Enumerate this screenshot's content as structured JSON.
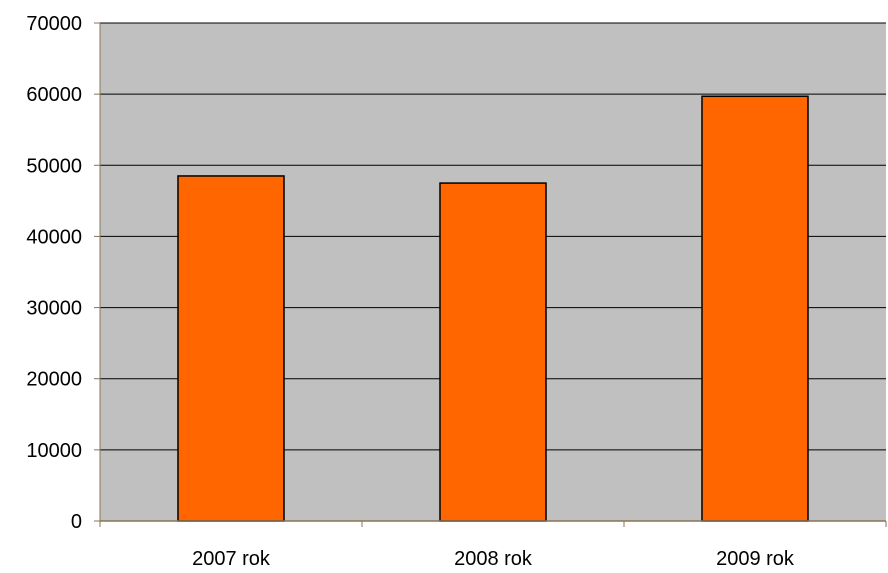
{
  "chart_data": {
    "type": "bar",
    "categories": [
      "2007 rok",
      "2008 rok",
      "2009 rok"
    ],
    "series": [
      {
        "values": [
          48500,
          47500,
          59700
        ]
      }
    ],
    "title": "",
    "xlabel": "",
    "ylabel": "",
    "ylim": [
      0,
      70000
    ],
    "yticks": [
      "0",
      "10000",
      "20000",
      "30000",
      "40000",
      "50000",
      "60000",
      "70000"
    ],
    "grid": true,
    "legend": "none",
    "colors": {
      "bar_fill": "#ff6600",
      "bar_stroke": "#000000",
      "plot_background": "#c0c0c0",
      "axis": "#8b7355",
      "gridline": "#000000"
    }
  }
}
